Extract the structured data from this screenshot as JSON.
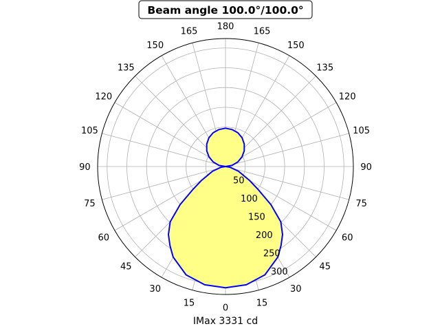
{
  "chart_data": {
    "type": "polar-area",
    "title": "Beam angle 100.0°/100.0°",
    "xlabel": "IMax 3331 cd",
    "angle_tick_labels": [
      "0",
      "15",
      "30",
      "45",
      "60",
      "75",
      "90",
      "105",
      "120",
      "135",
      "150",
      "165",
      "180"
    ],
    "radial_tick_labels": [
      "50",
      "100",
      "150",
      "200",
      "250",
      "300"
    ],
    "radial_ticks": [
      50,
      100,
      150,
      200,
      250,
      300
    ],
    "rlim": [
      0,
      324
    ],
    "grid": true,
    "angle_zero": "bottom",
    "series": [
      {
        "angles": [
          0,
          10,
          20,
          30,
          35,
          40,
          45,
          50,
          55,
          60,
          70,
          80,
          90
        ],
        "values": [
          307,
          304,
          292,
          265,
          245,
          225,
          198,
          150,
          100,
          70,
          35,
          12,
          0
        ]
      },
      {
        "angles": [
          90,
          100,
          110,
          120,
          130,
          140,
          150,
          160,
          170,
          180
        ],
        "values": [
          0,
          17,
          33,
          48,
          62,
          74,
          84,
          91,
          95,
          97
        ]
      }
    ],
    "colors": {
      "line": "#0000ff",
      "fill": "#ffff88",
      "grid": "#b0b0b0"
    }
  }
}
